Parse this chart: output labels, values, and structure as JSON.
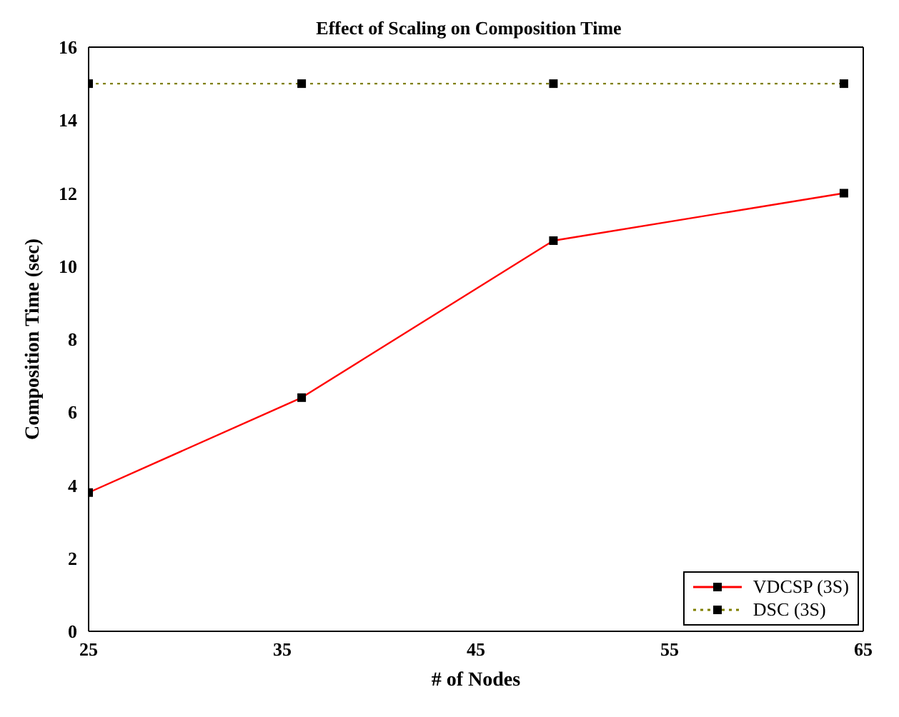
{
  "chart_data": {
    "type": "line",
    "title": "Effect of Scaling on Composition Time",
    "xlabel": "# of Nodes",
    "ylabel": "Composition Time (sec)",
    "x": [
      25,
      36,
      49,
      64
    ],
    "series": [
      {
        "name": "VDCSP (3S)",
        "color": "#ff0000",
        "values": [
          3.8,
          6.4,
          10.7,
          12.0
        ],
        "line_style": "solid"
      },
      {
        "name": "DSC (3S)",
        "color": "#808000",
        "values": [
          15,
          15,
          15,
          15
        ],
        "line_style": "dotted"
      }
    ],
    "xlim": [
      25,
      65
    ],
    "xticks": [
      25,
      35,
      45,
      55,
      65
    ],
    "ylim": [
      0,
      16
    ],
    "yticks": [
      0,
      2,
      4,
      6,
      8,
      10,
      12,
      14,
      16
    ],
    "grid": false,
    "legend": "bottom right",
    "marker": "square"
  }
}
